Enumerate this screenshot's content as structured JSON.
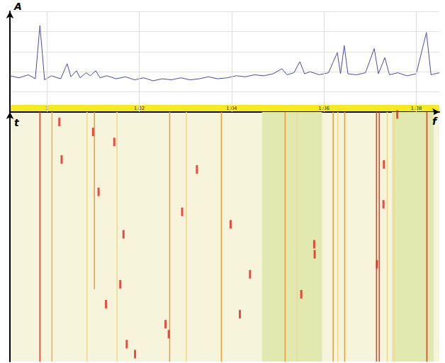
{
  "chart_data": [
    {
      "type": "line",
      "y_label": "A",
      "x_label": "f",
      "xlim": [
        0.992,
        1.085
      ],
      "xticks": [
        1,
        1.02,
        1.04,
        1.06,
        1.08
      ],
      "ylim": [
        0,
        100
      ],
      "yticks": [
        0,
        20,
        40,
        60,
        80,
        100
      ],
      "tick_labels": "x",
      "grid": true,
      "color": "#4848b0",
      "x": [
        0.992,
        0.994,
        0.996,
        0.9975,
        0.9985,
        0.9995,
        1.001,
        1.003,
        1.0044,
        1.0052,
        1.0064,
        1.0072,
        1.0085,
        1.0094,
        1.0106,
        1.0115,
        1.013,
        1.015,
        1.017,
        1.019,
        1.021,
        1.023,
        1.025,
        1.027,
        1.029,
        1.031,
        1.033,
        1.035,
        1.037,
        1.039,
        1.041,
        1.043,
        1.045,
        1.047,
        1.049,
        1.0509,
        1.052,
        1.0535,
        1.0548,
        1.0558,
        1.057,
        1.059,
        1.061,
        1.0629,
        1.0636,
        1.0644,
        1.0652,
        1.067,
        1.069,
        1.0709,
        1.0718,
        1.0732,
        1.0742,
        1.076,
        1.078,
        1.08,
        1.0822,
        1.0832,
        1.085
      ],
      "values": [
        36,
        34,
        37,
        33,
        86,
        32,
        36,
        33,
        48,
        35,
        41,
        34,
        39,
        36,
        41,
        34,
        36,
        33,
        35,
        32,
        34,
        31,
        33,
        32,
        34,
        32,
        33,
        35,
        33,
        34,
        36,
        35,
        37,
        36,
        38,
        43,
        37,
        39,
        50,
        38,
        40,
        37,
        39,
        59,
        38,
        66,
        38,
        37,
        39,
        63,
        38,
        54,
        37,
        39,
        36,
        38,
        79,
        37,
        39
      ]
    },
    {
      "type": "waterfall",
      "y_label": "t",
      "xlim": [
        0.992,
        1.085
      ],
      "ylim": [
        0,
        100
      ],
      "tick_labels": false,
      "grid": false,
      "bands": {
        "color": "#e1e9b0",
        "ranges": [
          [
            1.0466,
            1.0596
          ],
          [
            1.0747,
            1.0838
          ]
        ]
      },
      "carriers": [
        {
          "f": 0.9985,
          "t": [
            0,
            100
          ],
          "color": "#e0442a"
        },
        {
          "f": 1.0011,
          "t": [
            0,
            100
          ],
          "color": "#eeb060"
        },
        {
          "f": 1.0087,
          "t": [
            0,
            100
          ],
          "color": "#f2d88a"
        },
        {
          "f": 1.0103,
          "t": [
            29,
            100
          ],
          "color": "#e8a040"
        },
        {
          "f": 1.0152,
          "t": [
            0,
            100
          ],
          "color": "#f2d88a"
        },
        {
          "f": 1.0266,
          "t": [
            0,
            100
          ],
          "color": "#e8a040"
        },
        {
          "f": 1.0302,
          "t": [
            0,
            100
          ],
          "color": "#f2d88a"
        },
        {
          "f": 1.0378,
          "t": [
            0,
            100
          ],
          "color": "#e8a040"
        },
        {
          "f": 1.0516,
          "t": [
            0,
            100
          ],
          "color": "#e8a040"
        },
        {
          "f": 1.0542,
          "t": [
            0,
            100
          ],
          "color": "#f2d88a"
        },
        {
          "f": 1.062,
          "t": [
            0,
            100
          ],
          "color": "#e8a040"
        },
        {
          "f": 1.063,
          "t": [
            0,
            100
          ],
          "color": "#f2d88a"
        },
        {
          "f": 1.0645,
          "t": [
            0,
            100
          ],
          "color": "#e8a040"
        },
        {
          "f": 1.0714,
          "t": [
            0,
            100
          ],
          "color": "#e0442a"
        },
        {
          "f": 1.072,
          "t": [
            0,
            100
          ],
          "color": "#e0442a"
        },
        {
          "f": 1.0737,
          "t": [
            0,
            100
          ],
          "color": "#f2d88a"
        },
        {
          "f": 1.0752,
          "t": [
            0,
            100
          ],
          "color": "#f2d88a"
        },
        {
          "f": 1.0823,
          "t": [
            0,
            100
          ],
          "color": "#e0442a"
        }
      ],
      "bursts": {
        "color": "#e4201c",
        "f": [
          1.0027,
          1.01,
          1.0146,
          1.0032,
          1.0325,
          1.073,
          1.0112,
          1.0729,
          1.0293,
          1.0398,
          1.0166,
          1.0579,
          1.058,
          1.0715,
          1.044,
          1.0159,
          1.0551,
          1.0128,
          1.0418,
          1.0257,
          1.0264,
          1.0173,
          1.0191,
          1.0759
        ],
        "t": [
          96,
          92,
          88,
          81,
          77,
          79,
          68,
          63,
          60,
          55,
          51,
          47,
          43,
          39,
          35,
          31,
          27,
          23,
          19,
          15,
          11,
          7,
          3,
          99
        ]
      }
    }
  ]
}
